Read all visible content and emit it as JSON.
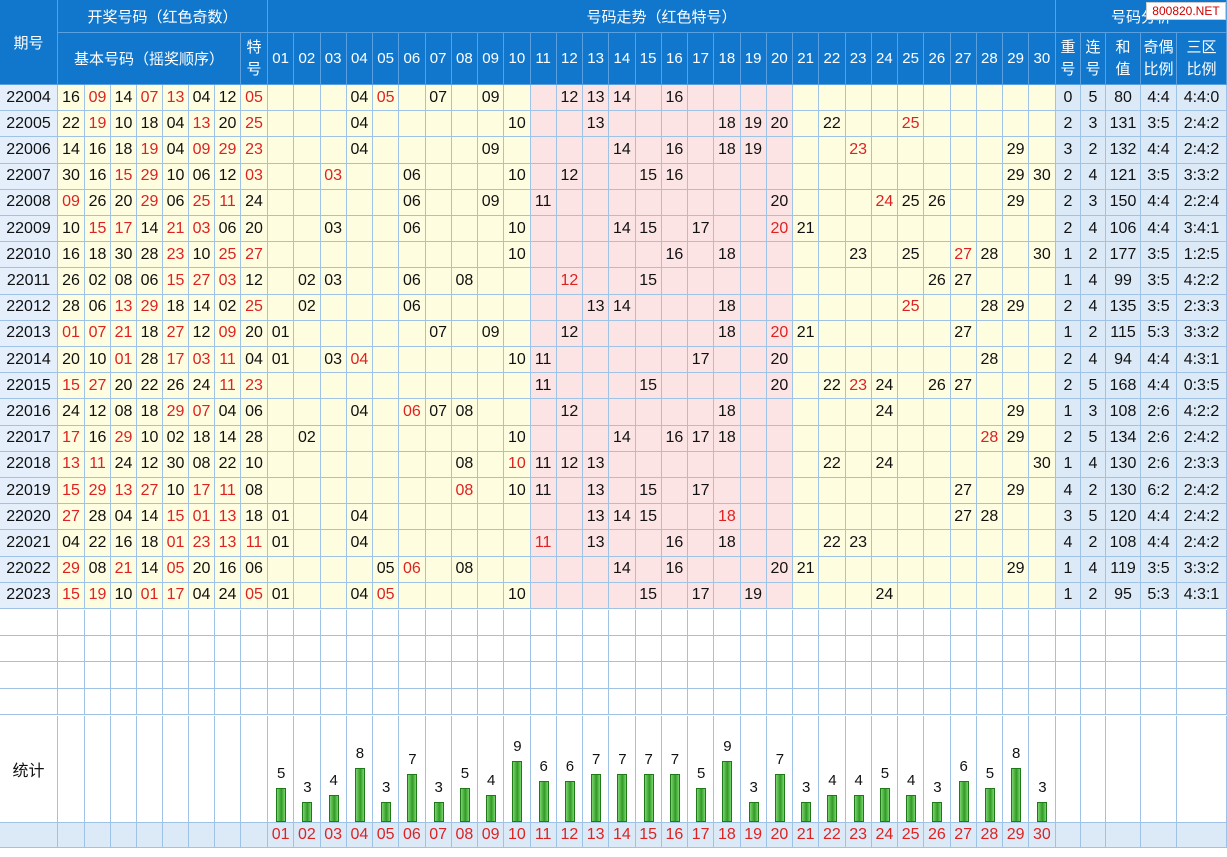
{
  "watermark": "800820.NET",
  "header": {
    "period_label": "期号",
    "draw_group_label": "开奖号码（红色奇数）",
    "basic_label": "基本号码（摇奖顺序）",
    "special_label": "特号",
    "trend_label": "号码走势（红色特号）",
    "analysis_label": "号码分析",
    "analysis_cols": [
      "重号",
      "连号",
      "和值",
      "奇偶比例",
      "三区比例"
    ],
    "number_cols": [
      "01",
      "02",
      "03",
      "04",
      "05",
      "06",
      "07",
      "08",
      "09",
      "10",
      "11",
      "12",
      "13",
      "14",
      "15",
      "16",
      "17",
      "18",
      "19",
      "20",
      "21",
      "22",
      "23",
      "24",
      "25",
      "26",
      "27",
      "28",
      "29",
      "30"
    ]
  },
  "rows": [
    {
      "period": "22004",
      "basic": [
        "16",
        "09",
        "14",
        "07",
        "13",
        "04",
        "12"
      ],
      "special": "05",
      "repeat": "0",
      "consec": "5",
      "sum": "80",
      "oddeven": "4:4",
      "zone": "4:4:0"
    },
    {
      "period": "22005",
      "basic": [
        "22",
        "19",
        "10",
        "18",
        "04",
        "13",
        "20"
      ],
      "special": "25",
      "repeat": "2",
      "consec": "3",
      "sum": "131",
      "oddeven": "3:5",
      "zone": "2:4:2"
    },
    {
      "period": "22006",
      "basic": [
        "14",
        "16",
        "18",
        "19",
        "04",
        "09",
        "29"
      ],
      "special": "23",
      "repeat": "3",
      "consec": "2",
      "sum": "132",
      "oddeven": "4:4",
      "zone": "2:4:2"
    },
    {
      "period": "22007",
      "basic": [
        "30",
        "16",
        "15",
        "29",
        "10",
        "06",
        "12"
      ],
      "special": "03",
      "repeat": "2",
      "consec": "4",
      "sum": "121",
      "oddeven": "3:5",
      "zone": "3:3:2"
    },
    {
      "period": "22008",
      "basic": [
        "09",
        "26",
        "20",
        "29",
        "06",
        "25",
        "11"
      ],
      "special": "24",
      "repeat": "2",
      "consec": "3",
      "sum": "150",
      "oddeven": "4:4",
      "zone": "2:2:4"
    },
    {
      "period": "22009",
      "basic": [
        "10",
        "15",
        "17",
        "14",
        "21",
        "03",
        "06"
      ],
      "special": "20",
      "repeat": "2",
      "consec": "4",
      "sum": "106",
      "oddeven": "4:4",
      "zone": "3:4:1"
    },
    {
      "period": "22010",
      "basic": [
        "16",
        "18",
        "30",
        "28",
        "23",
        "10",
        "25"
      ],
      "special": "27",
      "repeat": "1",
      "consec": "2",
      "sum": "177",
      "oddeven": "3:5",
      "zone": "1:2:5"
    },
    {
      "period": "22011",
      "basic": [
        "26",
        "02",
        "08",
        "06",
        "15",
        "27",
        "03"
      ],
      "special": "12",
      "repeat": "1",
      "consec": "4",
      "sum": "99",
      "oddeven": "3:5",
      "zone": "4:2:2"
    },
    {
      "period": "22012",
      "basic": [
        "28",
        "06",
        "13",
        "29",
        "18",
        "14",
        "02"
      ],
      "special": "25",
      "repeat": "2",
      "consec": "4",
      "sum": "135",
      "oddeven": "3:5",
      "zone": "2:3:3"
    },
    {
      "period": "22013",
      "basic": [
        "01",
        "07",
        "21",
        "18",
        "27",
        "12",
        "09"
      ],
      "special": "20",
      "repeat": "1",
      "consec": "2",
      "sum": "115",
      "oddeven": "5:3",
      "zone": "3:3:2"
    },
    {
      "period": "22014",
      "basic": [
        "20",
        "10",
        "01",
        "28",
        "17",
        "03",
        "11"
      ],
      "special": "04",
      "repeat": "2",
      "consec": "4",
      "sum": "94",
      "oddeven": "4:4",
      "zone": "4:3:1"
    },
    {
      "period": "22015",
      "basic": [
        "15",
        "27",
        "20",
        "22",
        "26",
        "24",
        "11"
      ],
      "special": "23",
      "repeat": "2",
      "consec": "5",
      "sum": "168",
      "oddeven": "4:4",
      "zone": "0:3:5"
    },
    {
      "period": "22016",
      "basic": [
        "24",
        "12",
        "08",
        "18",
        "29",
        "07",
        "04"
      ],
      "special": "06",
      "repeat": "1",
      "consec": "3",
      "sum": "108",
      "oddeven": "2:6",
      "zone": "4:2:2"
    },
    {
      "period": "22017",
      "basic": [
        "17",
        "16",
        "29",
        "10",
        "02",
        "18",
        "14"
      ],
      "special": "28",
      "repeat": "2",
      "consec": "5",
      "sum": "134",
      "oddeven": "2:6",
      "zone": "2:4:2"
    },
    {
      "period": "22018",
      "basic": [
        "13",
        "11",
        "24",
        "12",
        "30",
        "08",
        "22"
      ],
      "special": "10",
      "repeat": "1",
      "consec": "4",
      "sum": "130",
      "oddeven": "2:6",
      "zone": "2:3:3"
    },
    {
      "period": "22019",
      "basic": [
        "15",
        "29",
        "13",
        "27",
        "10",
        "17",
        "11"
      ],
      "special": "08",
      "repeat": "4",
      "consec": "2",
      "sum": "130",
      "oddeven": "6:2",
      "zone": "2:4:2"
    },
    {
      "period": "22020",
      "basic": [
        "27",
        "28",
        "04",
        "14",
        "15",
        "01",
        "13"
      ],
      "special": "18",
      "repeat": "3",
      "consec": "5",
      "sum": "120",
      "oddeven": "4:4",
      "zone": "2:4:2"
    },
    {
      "period": "22021",
      "basic": [
        "04",
        "22",
        "16",
        "18",
        "01",
        "23",
        "13"
      ],
      "special": "11",
      "repeat": "4",
      "consec": "2",
      "sum": "108",
      "oddeven": "4:4",
      "zone": "2:4:2"
    },
    {
      "period": "22022",
      "basic": [
        "29",
        "08",
        "21",
        "14",
        "05",
        "20",
        "16"
      ],
      "special": "06",
      "repeat": "1",
      "consec": "4",
      "sum": "119",
      "oddeven": "3:5",
      "zone": "3:3:2"
    },
    {
      "period": "22023",
      "basic": [
        "15",
        "19",
        "10",
        "01",
        "17",
        "04",
        "24"
      ],
      "special": "05",
      "repeat": "1",
      "consec": "2",
      "sum": "95",
      "oddeven": "5:3",
      "zone": "4:3:1"
    }
  ],
  "stats": {
    "label": "统计",
    "counts": [
      5,
      3,
      4,
      8,
      3,
      7,
      3,
      5,
      4,
      9,
      6,
      6,
      7,
      7,
      7,
      7,
      5,
      9,
      3,
      7,
      3,
      4,
      4,
      5,
      4,
      3,
      6,
      5,
      8,
      3
    ],
    "count_labels": [
      "5",
      "3",
      "4",
      "8",
      "3",
      "7",
      "3",
      "5",
      "4",
      "9",
      "6",
      "6",
      "7",
      "7",
      "7",
      "7",
      "5",
      "9",
      "3",
      "7",
      "3",
      "4",
      "4",
      "5",
      "4",
      "3",
      "6",
      "5",
      "8",
      "3"
    ]
  },
  "colors": {
    "header_bg": "#1177cc",
    "period_bg": "#e4effb",
    "yellow_bg": "#fffde0",
    "pink_bg": "#fde4e4",
    "odd_text": "#dd2222",
    "bar_green": "#2f9a23"
  }
}
